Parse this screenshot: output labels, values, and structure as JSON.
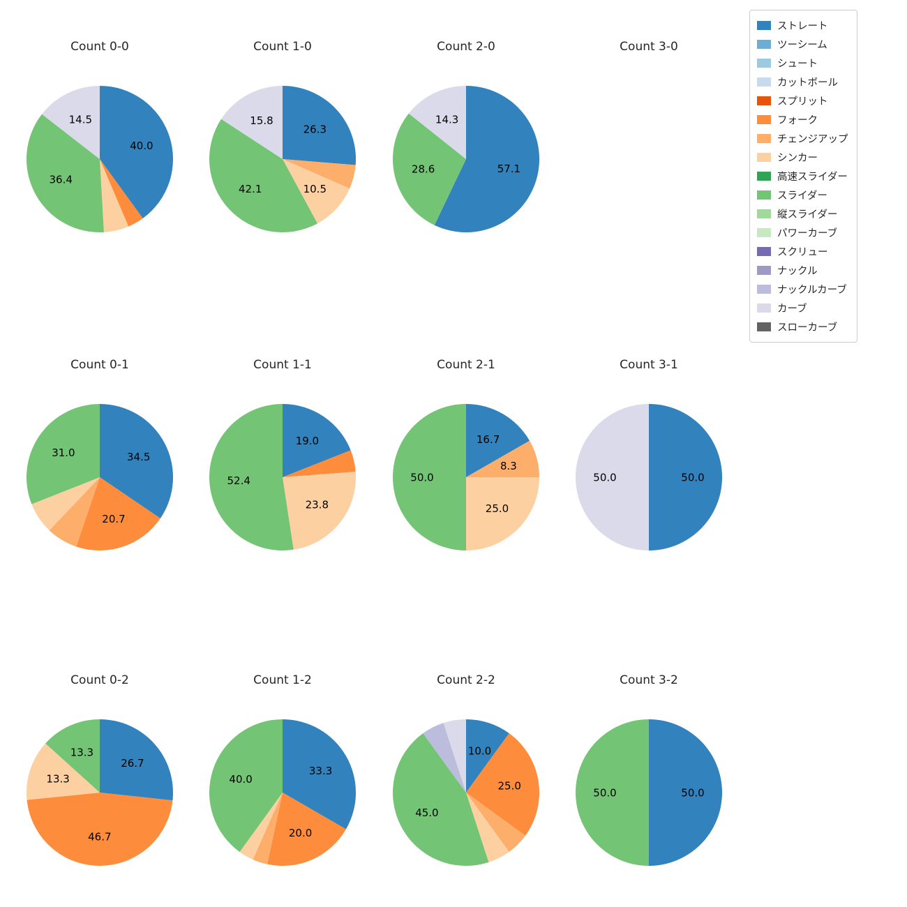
{
  "legend": {
    "position": "upper-right",
    "items": [
      {
        "label": "ストレート",
        "color": "#3182bd"
      },
      {
        "label": "ツーシーム",
        "color": "#6baed6"
      },
      {
        "label": "シュート",
        "color": "#9ecae1"
      },
      {
        "label": "カットボール",
        "color": "#c6dbef"
      },
      {
        "label": "スプリット",
        "color": "#e6550d"
      },
      {
        "label": "フォーク",
        "color": "#fd8d3c"
      },
      {
        "label": "チェンジアップ",
        "color": "#fdae6b"
      },
      {
        "label": "シンカー",
        "color": "#fdd0a2"
      },
      {
        "label": "高速スライダー",
        "color": "#31a354"
      },
      {
        "label": "スライダー",
        "color": "#74c476"
      },
      {
        "label": "縦スライダー",
        "color": "#a1d99b"
      },
      {
        "label": "パワーカーブ",
        "color": "#c7e9c0"
      },
      {
        "label": "スクリュー",
        "color": "#756bb1"
      },
      {
        "label": "ナックル",
        "color": "#9e9ac8"
      },
      {
        "label": "ナックルカーブ",
        "color": "#bcbddc"
      },
      {
        "label": "カーブ",
        "color": "#dadaeb"
      },
      {
        "label": "スローカーブ",
        "color": "#636363"
      }
    ]
  },
  "chart_data": [
    {
      "type": "pie",
      "title": "Count 0-0",
      "slices": [
        {
          "name": "ストレート",
          "value": 40.0,
          "label": "40.0"
        },
        {
          "name": "フォーク",
          "value": 3.6,
          "label": ""
        },
        {
          "name": "シンカー",
          "value": 5.5,
          "label": ""
        },
        {
          "name": "スライダー",
          "value": 36.4,
          "label": "36.4"
        },
        {
          "name": "カーブ",
          "value": 14.5,
          "label": "14.5"
        }
      ]
    },
    {
      "type": "pie",
      "title": "Count 1-0",
      "slices": [
        {
          "name": "ストレート",
          "value": 26.3,
          "label": "26.3"
        },
        {
          "name": "チェンジアップ",
          "value": 5.3,
          "label": ""
        },
        {
          "name": "シンカー",
          "value": 10.5,
          "label": "10.5"
        },
        {
          "name": "スライダー",
          "value": 42.1,
          "label": "42.1"
        },
        {
          "name": "カーブ",
          "value": 15.8,
          "label": "15.8"
        }
      ]
    },
    {
      "type": "pie",
      "title": "Count 2-0",
      "slices": [
        {
          "name": "ストレート",
          "value": 57.1,
          "label": "57.1"
        },
        {
          "name": "スライダー",
          "value": 28.6,
          "label": "28.6"
        },
        {
          "name": "カーブ",
          "value": 14.3,
          "label": "14.3"
        }
      ]
    },
    {
      "type": "pie",
      "title": "Count 3-0",
      "slices": []
    },
    {
      "type": "pie",
      "title": "Count 0-1",
      "slices": [
        {
          "name": "ストレート",
          "value": 34.5,
          "label": "34.5"
        },
        {
          "name": "フォーク",
          "value": 20.7,
          "label": "20.7"
        },
        {
          "name": "チェンジアップ",
          "value": 6.9,
          "label": ""
        },
        {
          "name": "シンカー",
          "value": 6.9,
          "label": ""
        },
        {
          "name": "スライダー",
          "value": 31.0,
          "label": "31.0"
        }
      ]
    },
    {
      "type": "pie",
      "title": "Count 1-1",
      "slices": [
        {
          "name": "ストレート",
          "value": 19.0,
          "label": "19.0"
        },
        {
          "name": "フォーク",
          "value": 4.8,
          "label": ""
        },
        {
          "name": "シンカー",
          "value": 23.8,
          "label": "23.8"
        },
        {
          "name": "スライダー",
          "value": 52.4,
          "label": "52.4"
        }
      ]
    },
    {
      "type": "pie",
      "title": "Count 2-1",
      "slices": [
        {
          "name": "ストレート",
          "value": 16.7,
          "label": "16.7"
        },
        {
          "name": "チェンジアップ",
          "value": 8.3,
          "label": "8.3"
        },
        {
          "name": "シンカー",
          "value": 25.0,
          "label": "25.0"
        },
        {
          "name": "スライダー",
          "value": 50.0,
          "label": "50.0"
        }
      ]
    },
    {
      "type": "pie",
      "title": "Count 3-1",
      "slices": [
        {
          "name": "ストレート",
          "value": 50.0,
          "label": "50.0"
        },
        {
          "name": "カーブ",
          "value": 50.0,
          "label": "50.0"
        }
      ]
    },
    {
      "type": "pie",
      "title": "Count 0-2",
      "slices": [
        {
          "name": "ストレート",
          "value": 26.7,
          "label": "26.7"
        },
        {
          "name": "フォーク",
          "value": 46.7,
          "label": "46.7"
        },
        {
          "name": "シンカー",
          "value": 13.3,
          "label": "13.3"
        },
        {
          "name": "スライダー",
          "value": 13.3,
          "label": "13.3"
        }
      ]
    },
    {
      "type": "pie",
      "title": "Count 1-2",
      "slices": [
        {
          "name": "ストレート",
          "value": 33.3,
          "label": "33.3"
        },
        {
          "name": "フォーク",
          "value": 20.0,
          "label": "20.0"
        },
        {
          "name": "チェンジアップ",
          "value": 3.3,
          "label": ""
        },
        {
          "name": "シンカー",
          "value": 3.3,
          "label": ""
        },
        {
          "name": "スライダー",
          "value": 40.0,
          "label": "40.0"
        }
      ]
    },
    {
      "type": "pie",
      "title": "Count 2-2",
      "slices": [
        {
          "name": "ストレート",
          "value": 10.0,
          "label": "10.0"
        },
        {
          "name": "フォーク",
          "value": 25.0,
          "label": "25.0"
        },
        {
          "name": "チェンジアップ",
          "value": 5.0,
          "label": ""
        },
        {
          "name": "シンカー",
          "value": 5.0,
          "label": ""
        },
        {
          "name": "スライダー",
          "value": 45.0,
          "label": "45.0"
        },
        {
          "name": "ナックルカーブ",
          "value": 5.0,
          "label": ""
        },
        {
          "name": "カーブ",
          "value": 5.0,
          "label": ""
        }
      ]
    },
    {
      "type": "pie",
      "title": "Count 3-2",
      "slices": [
        {
          "name": "ストレート",
          "value": 50.0,
          "label": "50.0"
        },
        {
          "name": "スライダー",
          "value": 50.0,
          "label": "50.0"
        }
      ]
    }
  ]
}
